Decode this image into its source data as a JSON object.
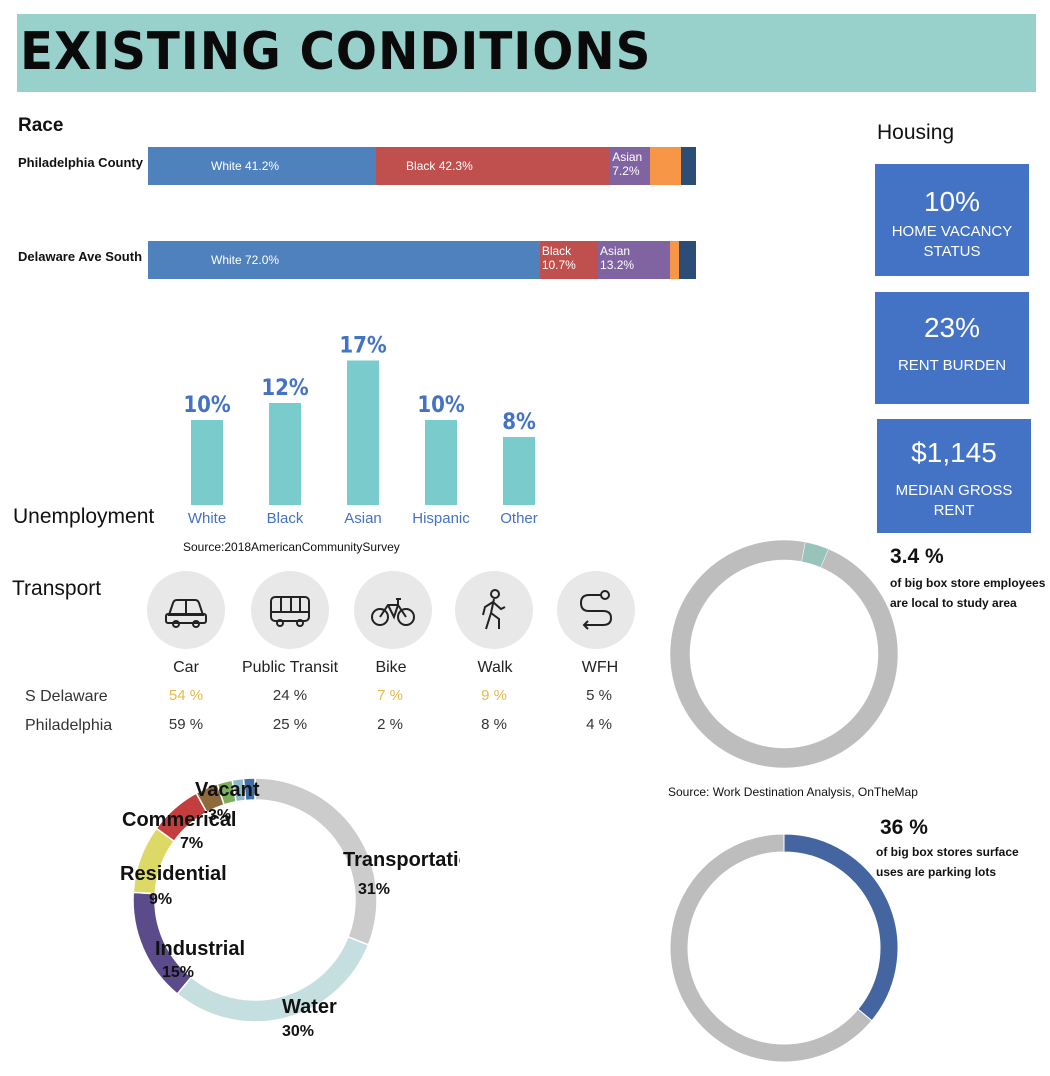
{
  "banner": {
    "title": "EXISTING CONDITIONS",
    "color": "#98d1cc"
  },
  "race": {
    "title": "Race",
    "colors": {
      "white": "#4f81bd",
      "black": "#c0504d",
      "asian": "#8064a2",
      "hispanic": "#f79646",
      "other": "#2c4d75"
    },
    "rows": [
      {
        "label": "Philadelphia County",
        "segments": [
          {
            "name": "White",
            "value": 41.2,
            "text": "White 41.2%",
            "color": "#4f81bd"
          },
          {
            "name": "Black",
            "value": 42.3,
            "text": "Black 42.3%",
            "color": "#c0504d"
          },
          {
            "name": "Asian",
            "value": 7.2,
            "text": "Asian\n7.2%",
            "color": "#8064a2"
          },
          {
            "name": "Hispanic",
            "value": 5.6,
            "text": "",
            "color": "#f79646"
          },
          {
            "name": "Other",
            "value": 2.7,
            "text": "",
            "color": "#2c4d75"
          }
        ]
      },
      {
        "label": "Delaware Ave South",
        "segments": [
          {
            "name": "White",
            "value": 72.0,
            "text": "White 72.0%",
            "color": "#4f81bd"
          },
          {
            "name": "Black",
            "value": 10.7,
            "text": "Black\n10.7%",
            "color": "#c0504d"
          },
          {
            "name": "Asian",
            "value": 13.2,
            "text": "Asian\n13.2%",
            "color": "#8064a2"
          },
          {
            "name": "Hispanic",
            "value": 1.6,
            "text": "",
            "color": "#f79646"
          },
          {
            "name": "Other",
            "value": 3.2,
            "text": "",
            "color": "#2c4d75"
          }
        ]
      }
    ]
  },
  "unemployment": {
    "title": "Unemployment",
    "source": "Source:2018AmericanCommunitySurvey"
  },
  "housing": {
    "title": "Housing",
    "boxes": [
      {
        "value": "10%",
        "label": "HOME VACANCY\nSTATUS"
      },
      {
        "value": "23%",
        "label": "RENT BURDEN"
      },
      {
        "value": "$1,145",
        "label": "MEDIAN GROSS\nRENT"
      }
    ]
  },
  "transport": {
    "title": "Transport",
    "modes": [
      {
        "name": "Car",
        "icon": "car-icon"
      },
      {
        "name": "Public Transit",
        "icon": "bus-icon"
      },
      {
        "name": "Bike",
        "icon": "bike-icon"
      },
      {
        "name": "Walk",
        "icon": "walk-icon"
      },
      {
        "name": "WFH",
        "icon": "route-icon"
      }
    ],
    "rows": [
      {
        "label": "S Delaware",
        "values": [
          "54 %",
          "24 %",
          "7 %",
          "9 %",
          "5 %"
        ],
        "highlight": [
          true,
          false,
          true,
          true,
          false
        ]
      },
      {
        "label": "Philadelphia",
        "values": [
          "59 %",
          "25 %",
          "2 %",
          "8 %",
          "4 %"
        ],
        "highlight": [
          false,
          false,
          false,
          false,
          false
        ]
      }
    ],
    "highlight_color": "#e8b84a"
  },
  "employees_donut": {
    "big_text": "3.4 %",
    "small_text": "of big box store employees\nare local to study area",
    "source": "Source: Work Destination Analysis, OnTheMap"
  },
  "parking_donut": {
    "big_text": "36 %",
    "small_text": "of big box stores surface\nuses are parking lots"
  },
  "landuse": {
    "labels": [
      {
        "name": "Transportation",
        "pct": "31%"
      },
      {
        "name": "Water",
        "pct": "30%"
      },
      {
        "name": "Industrial",
        "pct": "15%"
      },
      {
        "name": "Residential",
        "pct": "9%"
      },
      {
        "name": "Commerical",
        "pct": "7%"
      },
      {
        "name": "Vacant",
        "pct": "3%"
      }
    ]
  },
  "chart_data": [
    {
      "type": "bar",
      "title": "Unemployment",
      "categories": [
        "White",
        "Black",
        "Asian",
        "Hispanic",
        "Other"
      ],
      "values": [
        10,
        12,
        17,
        10,
        8
      ],
      "data_labels": [
        "10%",
        "12%",
        "17%",
        "10%",
        "8%"
      ],
      "ylim": [
        0,
        20
      ],
      "bar_color": "#7acccc",
      "label_color": "#4472c4"
    },
    {
      "type": "pie",
      "donut": true,
      "slices": [
        {
          "name": "Local",
          "value": 3.4,
          "color": "#98c3bb"
        },
        {
          "name": "Non-local",
          "value": 96.6,
          "color": "#bdbdbd"
        }
      ]
    },
    {
      "type": "pie",
      "donut": true,
      "slices": [
        {
          "name": "Parking lots",
          "value": 36,
          "color": "#4465a0"
        },
        {
          "name": "Other",
          "value": 64,
          "color": "#bdbdbd"
        }
      ]
    },
    {
      "type": "pie",
      "donut": true,
      "slices": [
        {
          "name": "Transportation",
          "value": 31,
          "color": "#cccccc"
        },
        {
          "name": "Water",
          "value": 30,
          "color": "#c5dfe0"
        },
        {
          "name": "Industrial",
          "value": 15,
          "color": "#5b4b8a"
        },
        {
          "name": "Residential",
          "value": 9,
          "color": "#dcd966"
        },
        {
          "name": "Commerical",
          "value": 7,
          "color": "#c43e3e"
        },
        {
          "name": "Vacant",
          "value": 3,
          "color": "#8e6a3c"
        },
        {
          "name": "",
          "value": 2,
          "color": "#7caf5c"
        },
        {
          "name": "",
          "value": 1.5,
          "color": "#8fb9c9"
        },
        {
          "name": "",
          "value": 1.5,
          "color": "#3f6ea8"
        }
      ]
    }
  ]
}
